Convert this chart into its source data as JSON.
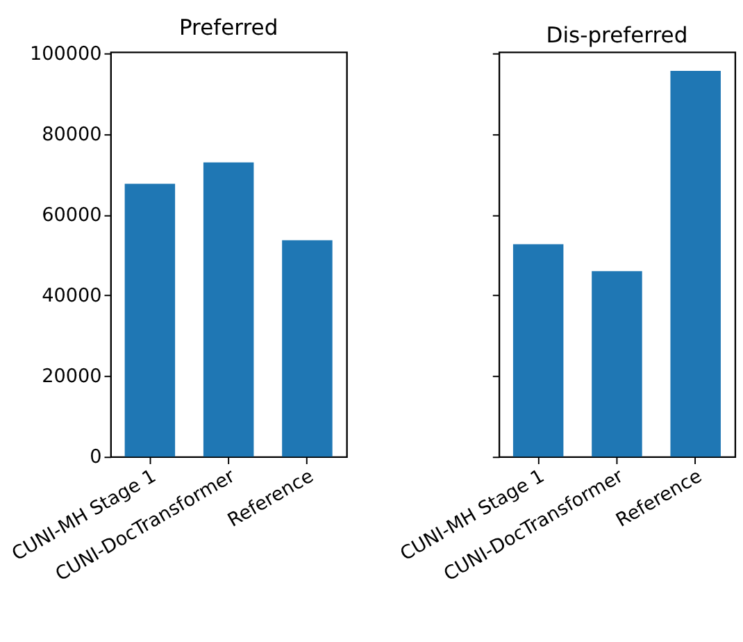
{
  "chart_data": [
    {
      "type": "bar",
      "title": "Preferred",
      "categories": [
        "CUNI-MH Stage 1",
        "CUNI-DocTransformer",
        "Reference"
      ],
      "values": [
        67700,
        73000,
        53700
      ],
      "color": "#1f77b4",
      "ylim": [
        0,
        100400
      ],
      "yticks": [
        0,
        20000,
        40000,
        60000,
        80000,
        100000
      ],
      "grid": false
    },
    {
      "type": "bar",
      "title": "Dis-preferred",
      "categories": [
        "CUNI-MH Stage 1",
        "CUNI-DocTransformer",
        "Reference"
      ],
      "values": [
        52700,
        46000,
        95700
      ],
      "color": "#1f77b4",
      "ylim": [
        0,
        100400
      ],
      "yticks": [
        0,
        20000,
        40000,
        60000,
        80000,
        100000
      ],
      "grid": false,
      "tick_labels": "x"
    }
  ]
}
